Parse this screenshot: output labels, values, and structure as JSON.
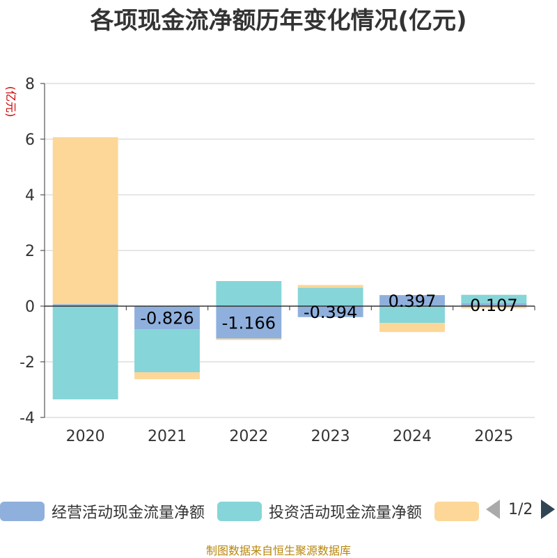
{
  "chart_data": {
    "type": "bar",
    "stacked": true,
    "title": "各项现金流净额历年变化情况(亿元)",
    "ylabel": "(亿元)",
    "xlabel": "",
    "categories": [
      "2020",
      "2021",
      "2022",
      "2023",
      "2024",
      "2025"
    ],
    "ylim": [
      -4,
      8
    ],
    "yticks": [
      "8",
      "6",
      "4",
      "2",
      "0",
      "-2",
      "-4"
    ],
    "series": [
      {
        "name": "经营活动现金流量净额",
        "color": "#8fb0dd",
        "values": [
          0.07,
          -0.826,
          -1.166,
          -0.394,
          0.397,
          0.107
        ]
      },
      {
        "name": "投资活动现金流量净额",
        "color": "#86d5d9",
        "values": [
          -3.35,
          -1.55,
          0.9,
          0.66,
          -0.6,
          0.3
        ]
      },
      {
        "name": "",
        "color": "#fcd798",
        "values": [
          6.0,
          -0.25,
          -0.05,
          0.1,
          -0.33,
          -0.08
        ]
      }
    ],
    "data_labels": [
      "",
      "-0.826",
      "-1.166",
      "-0.394",
      "0.397",
      "0.107"
    ],
    "grid": true,
    "legend_position": "bottom"
  },
  "legend": {
    "items": [
      {
        "label": "经营活动现金流量净额",
        "color": "#8fb0dd"
      },
      {
        "label": "投资活动现金流量净额",
        "color": "#86d5d9"
      },
      {
        "label": "",
        "color": "#fcd798"
      }
    ],
    "page": "1/2"
  },
  "source_note": "制图数据来自恒生聚源数据库"
}
